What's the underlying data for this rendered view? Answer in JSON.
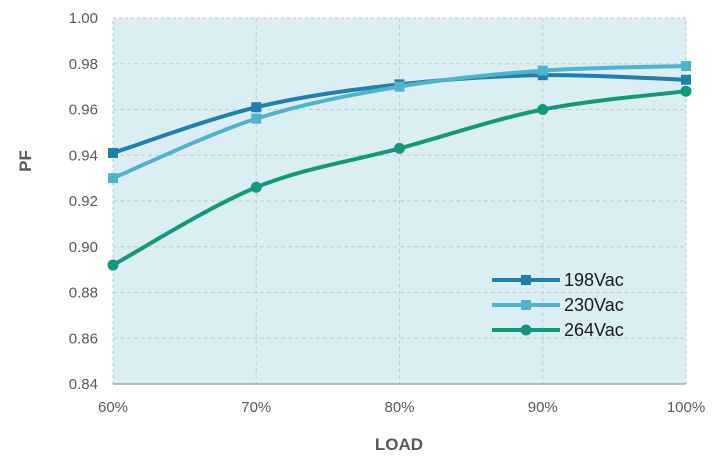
{
  "chart_data": {
    "type": "line",
    "title": "",
    "xlabel": "LOAD",
    "ylabel": "PF",
    "categories": [
      "60%",
      "70%",
      "80%",
      "90%",
      "100%"
    ],
    "ylim": [
      0.84,
      1.0
    ],
    "yticks": [
      "0.84",
      "0.86",
      "0.88",
      "0.90",
      "0.92",
      "0.94",
      "0.96",
      "0.98",
      "1.00"
    ],
    "grid": true,
    "legend_position": "bottom-right",
    "plot_background": "#dbeef3",
    "series": [
      {
        "name": "198Vac",
        "values": [
          0.941,
          0.961,
          0.971,
          0.975,
          0.973
        ],
        "color": "#1f7fae",
        "marker": "square"
      },
      {
        "name": "230Vac",
        "values": [
          0.93,
          0.956,
          0.97,
          0.977,
          0.979
        ],
        "color": "#4fb3cc",
        "marker": "square"
      },
      {
        "name": "264Vac",
        "values": [
          0.892,
          0.926,
          0.943,
          0.96,
          0.968
        ],
        "color": "#11997c",
        "marker": "circle"
      }
    ]
  }
}
